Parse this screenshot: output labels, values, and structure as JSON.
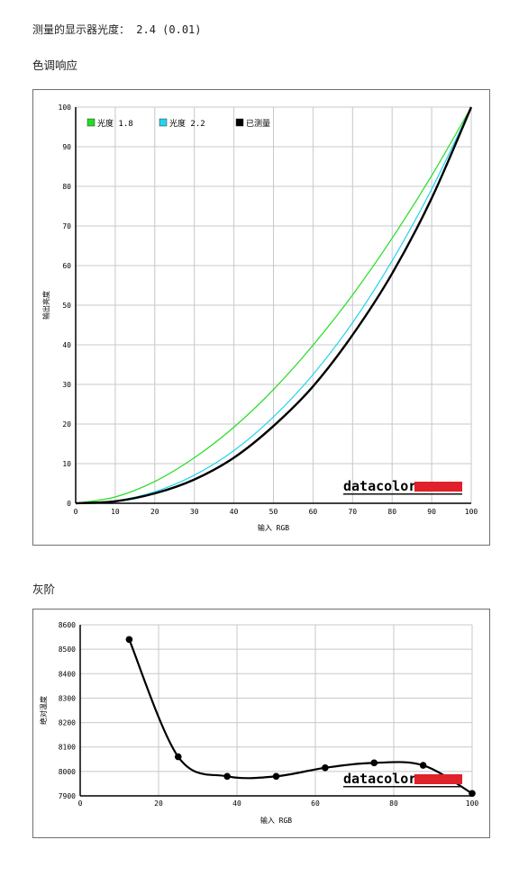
{
  "gamma_line": {
    "label": "测量的显示器光度：",
    "value": "2.4 (0.01)"
  },
  "sections": {
    "tone_response": "色调响应",
    "gray_scale": "灰阶"
  },
  "colors": {
    "gamma_18": "#22dd22",
    "gamma_22": "#22d3ee",
    "measured": "#000000",
    "grid": "#c8c8c8",
    "brand_bar": "#e0202a"
  },
  "brand": "datacolor",
  "chart_data": [
    {
      "type": "line",
      "section": "色调响应",
      "xlabel": "输入 RGB",
      "ylabel": "输出亮度",
      "xlim": [
        0,
        100
      ],
      "ylim": [
        0,
        100
      ],
      "x_ticks": [
        0,
        10,
        20,
        30,
        40,
        50,
        60,
        70,
        80,
        90,
        100
      ],
      "y_ticks": [
        0,
        10,
        20,
        30,
        40,
        50,
        60,
        70,
        80,
        90,
        100
      ],
      "grid": true,
      "legend_position": "top-left",
      "x": [
        0,
        10,
        20,
        30,
        40,
        50,
        60,
        70,
        80,
        90,
        100
      ],
      "series": [
        {
          "name": "光度 1.8",
          "color": "#22dd22",
          "values": [
            0,
            1.6,
            5.5,
            11.5,
            19.2,
            28.7,
            39.9,
            52.6,
            66.9,
            82.7,
            100
          ]
        },
        {
          "name": "光度 2.2",
          "color": "#22d3ee",
          "values": [
            0,
            0.6,
            2.9,
            7.1,
            13.3,
            21.8,
            32.5,
            45.6,
            61.2,
            79.3,
            100
          ]
        },
        {
          "name": "已测量",
          "color": "#000000",
          "values": [
            0,
            0.5,
            2.5,
            6.0,
            11.5,
            19.5,
            29.5,
            42.5,
            58.0,
            77.0,
            100
          ]
        }
      ]
    },
    {
      "type": "line",
      "section": "灰阶",
      "xlabel": "输入 RGB",
      "ylabel": "绝对温度",
      "xlim": [
        0,
        100
      ],
      "ylim": [
        7900,
        8600
      ],
      "x_ticks": [
        0,
        20,
        40,
        60,
        80,
        100
      ],
      "y_ticks": [
        7900,
        8000,
        8100,
        8200,
        8300,
        8400,
        8500,
        8600
      ],
      "grid": true,
      "series": [
        {
          "name": "",
          "color": "#000000",
          "x": [
            12.5,
            25,
            37.5,
            50,
            62.5,
            75,
            87.5,
            100
          ],
          "values": [
            8540,
            8060,
            7980,
            7980,
            8015,
            8035,
            8025,
            7910
          ]
        }
      ]
    }
  ]
}
